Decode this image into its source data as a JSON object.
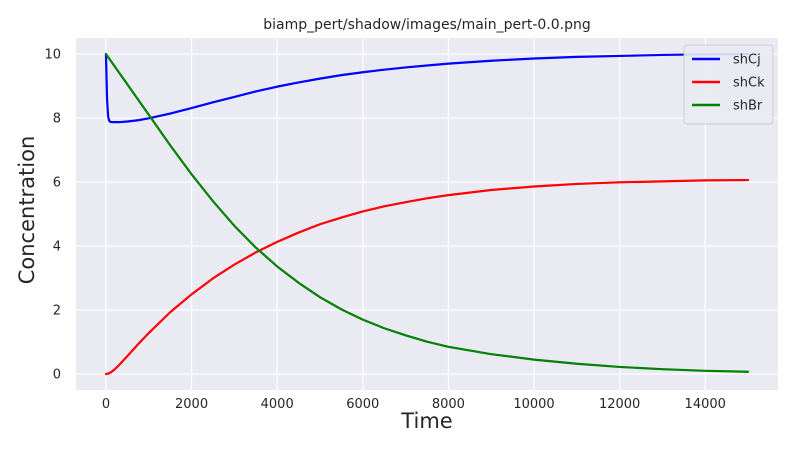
{
  "chart_data": {
    "type": "line",
    "title": "biamp_pert/shadow/images/main_pert-0.0.png",
    "xlabel": "Time",
    "ylabel": "Concentration",
    "xlim": [
      -700,
      15700
    ],
    "ylim": [
      -0.5,
      10.5
    ],
    "xticks": [
      0,
      2000,
      4000,
      6000,
      8000,
      10000,
      12000,
      14000
    ],
    "yticks": [
      0,
      2,
      4,
      6,
      8,
      10
    ],
    "grid": true,
    "legend_position": "top-right",
    "colors": {
      "background": "#EAEAF2",
      "grid": "#FFFFFF",
      "text": "#262626"
    },
    "series": [
      {
        "name": "shCj",
        "color": "#0000FF",
        "x": [
          0,
          25,
          50,
          75,
          100,
          150,
          200,
          300,
          500,
          750,
          1000,
          1500,
          2000,
          2500,
          3000,
          3500,
          4000,
          4500,
          5000,
          5500,
          6000,
          6500,
          7000,
          7500,
          8000,
          9000,
          10000,
          11000,
          12000,
          13000,
          14000,
          15000
        ],
        "y": [
          10.0,
          8.6,
          8.05,
          7.92,
          7.88,
          7.87,
          7.87,
          7.87,
          7.89,
          7.93,
          7.99,
          8.14,
          8.31,
          8.49,
          8.66,
          8.83,
          8.98,
          9.11,
          9.23,
          9.34,
          9.43,
          9.51,
          9.58,
          9.64,
          9.7,
          9.79,
          9.86,
          9.91,
          9.94,
          9.97,
          9.99,
          10.0
        ]
      },
      {
        "name": "shCk",
        "color": "#FF0000",
        "x": [
          0,
          50,
          100,
          150,
          200,
          300,
          500,
          750,
          1000,
          1500,
          2000,
          2500,
          3000,
          3500,
          4000,
          4500,
          5000,
          5500,
          6000,
          6500,
          7000,
          7500,
          8000,
          9000,
          10000,
          11000,
          12000,
          13000,
          14000,
          15000
        ],
        "y": [
          0.0,
          0.01,
          0.04,
          0.09,
          0.14,
          0.27,
          0.56,
          0.93,
          1.28,
          1.93,
          2.49,
          2.99,
          3.42,
          3.8,
          4.13,
          4.42,
          4.68,
          4.89,
          5.08,
          5.24,
          5.37,
          5.49,
          5.59,
          5.75,
          5.86,
          5.94,
          5.99,
          6.02,
          6.05,
          6.06
        ]
      },
      {
        "name": "shBr",
        "color": "#008000",
        "x": [
          0,
          500,
          1000,
          1500,
          2000,
          2500,
          3000,
          3500,
          4000,
          4500,
          5000,
          5500,
          6000,
          6500,
          7000,
          7500,
          8000,
          9000,
          10000,
          11000,
          12000,
          13000,
          14000,
          15000
        ],
        "y": [
          10.0,
          9.05,
          8.1,
          7.15,
          6.24,
          5.4,
          4.63,
          3.95,
          3.36,
          2.85,
          2.4,
          2.02,
          1.7,
          1.43,
          1.21,
          1.01,
          0.85,
          0.62,
          0.45,
          0.32,
          0.22,
          0.15,
          0.1,
          0.07
        ]
      }
    ]
  }
}
